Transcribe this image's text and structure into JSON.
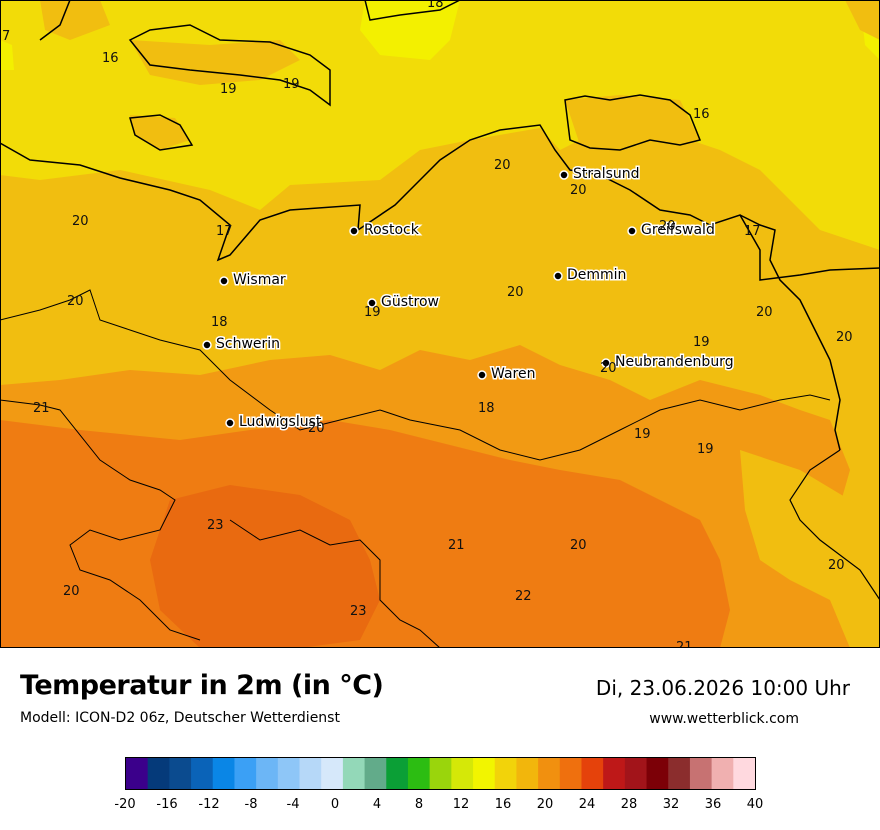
{
  "header": {
    "title": "Temperatur in 2m (in °C)",
    "subtitle": "Modell: ICON-D2 06z, Deutscher Wetterdienst",
    "datetime": "Di, 23.06.2026 10:00 Uhr",
    "website": "www.wetterblick.com"
  },
  "colors": {
    "sea": "#f2dc08",
    "cool_sea": "#f3f000",
    "land_north": "#f1be10",
    "land_mid": "#f29a13",
    "land_warm": "#ef7c12",
    "land_hot": "#e96a10",
    "border": "#000000"
  },
  "cities": [
    {
      "name": "Stralsund"
    },
    {
      "name": "Rostock"
    },
    {
      "name": "Greifswald"
    },
    {
      "name": "Wismar"
    },
    {
      "name": "Demmin"
    },
    {
      "name": "Güstrow"
    },
    {
      "name": "Schwerin"
    },
    {
      "name": "Neubrandenburg"
    },
    {
      "name": "Waren"
    },
    {
      "name": "Ludwigslust"
    }
  ],
  "contour_labels": [
    "18",
    "16",
    "19",
    "19",
    "16",
    "20",
    "20",
    "20",
    "17",
    "20",
    "17",
    "20",
    "20",
    "18",
    "19",
    "19",
    "20",
    "20",
    "21",
    "20",
    "18",
    "19",
    "19",
    "23",
    "21",
    "20",
    "20",
    "22",
    "23",
    "21",
    "20",
    "7"
  ],
  "legend": {
    "ticks": [
      "-20",
      "-16",
      "-12",
      "-8",
      "-4",
      "0",
      "4",
      "8",
      "12",
      "16",
      "20",
      "24",
      "28",
      "32",
      "36",
      "40"
    ],
    "colors": [
      "#3b008b",
      "#053a7a",
      "#0b4b8f",
      "#0a63b8",
      "#0a86e6",
      "#3ba0f5",
      "#6cb6f6",
      "#8ec6f7",
      "#b6d8f8",
      "#d6e8fa",
      "#93d8b8",
      "#62ab8a",
      "#0b9f36",
      "#2cbd12",
      "#9ad50c",
      "#d5e808",
      "#f2f500",
      "#f2d30a",
      "#f2b60c",
      "#f1900f",
      "#ef700e",
      "#e5420b",
      "#be1818",
      "#a2141a",
      "#7c0007",
      "#8b2d2d",
      "#c77272",
      "#f0b0b0",
      "#ffd9df"
    ]
  }
}
